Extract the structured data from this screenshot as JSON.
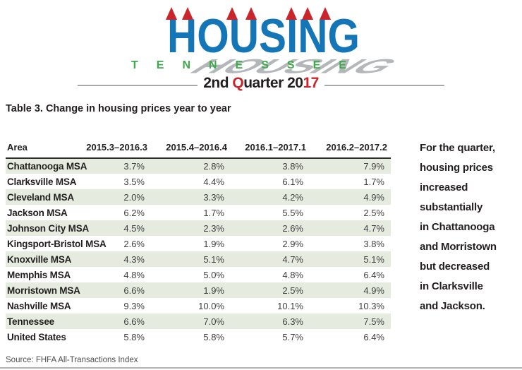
{
  "logo": {
    "title": "HOUSING",
    "subtitle": "TENNESSEE",
    "quarter": {
      "part1": "2nd ",
      "part2": "Q",
      "part3": "uarter 20",
      "part4": "17"
    },
    "colors": {
      "blue": "#1476b7",
      "red": "#c9252b",
      "green": "#3caa49",
      "shadow_gray": "#a8abae"
    }
  },
  "table": {
    "title": "Table 3. Change in housing prices year to year",
    "columns": [
      "Area",
      "2015.3–2016.3",
      "2015.4–2016.4",
      "2016.1–2017.1",
      "2016.2–2017.2"
    ],
    "row_shade_color": "#e5ecdf",
    "rows": [
      {
        "area": "Chattanooga MSA",
        "values": [
          "3.7%",
          "2.8%",
          "3.8%",
          "7.9%"
        ]
      },
      {
        "area": "Clarksville MSA",
        "values": [
          "3.5%",
          "4.4%",
          "6.1%",
          "1.7%"
        ]
      },
      {
        "area": "Cleveland MSA",
        "values": [
          "2.0%",
          "3.3%",
          "4.2%",
          "4.9%"
        ]
      },
      {
        "area": "Jackson MSA",
        "values": [
          "6.2%",
          "1.7%",
          "5.5%",
          "2.5%"
        ]
      },
      {
        "area": "Johnson City MSA",
        "values": [
          "4.5%",
          "2.3%",
          "2.6%",
          "4.7%"
        ]
      },
      {
        "area": "Kingsport-Bristol MSA",
        "values": [
          "2.6%",
          "1.9%",
          "2.9%",
          "3.8%"
        ]
      },
      {
        "area": "Knoxville MSA",
        "values": [
          "4.3%",
          "5.1%",
          "4.7%",
          "5.1%"
        ]
      },
      {
        "area": "Memphis MSA",
        "values": [
          "4.8%",
          "5.0%",
          "4.8%",
          "6.4%"
        ]
      },
      {
        "area": "Morristown MSA",
        "values": [
          "6.6%",
          "1.9%",
          "2.5%",
          "4.9%"
        ]
      },
      {
        "area": "Nashville MSA",
        "values": [
          "9.3%",
          "10.0%",
          "10.1%",
          "10.3%"
        ]
      },
      {
        "area": "Tennessee",
        "values": [
          "6.6%",
          "7.0%",
          "6.3%",
          "7.5%"
        ]
      },
      {
        "area": "United States",
        "values": [
          "5.8%",
          "5.8%",
          "5.7%",
          "6.4%"
        ]
      }
    ]
  },
  "sidebar": {
    "note": "For the quarter,\nhousing prices\nincreased\nsubstantially\nin Chattanooga\nand Morristown\nbut decreased\nin Clarksville\nand Jackson."
  },
  "footer": {
    "source": "Source: FHFA All-Transactions Index"
  }
}
